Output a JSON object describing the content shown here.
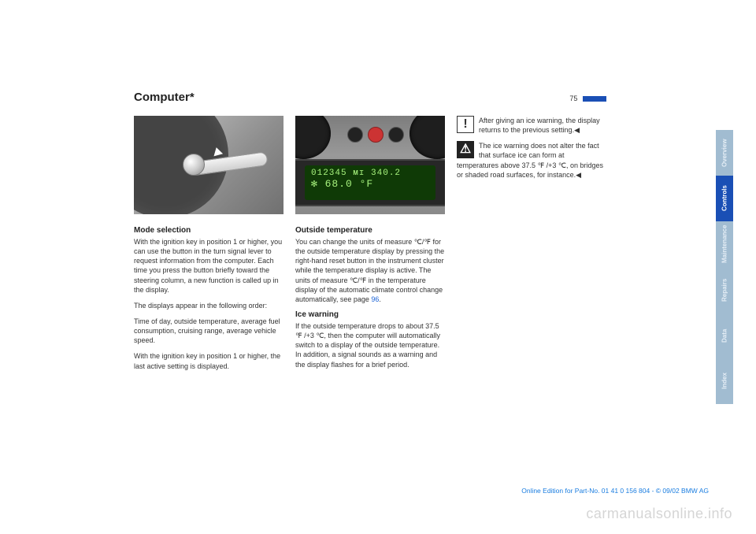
{
  "title": "Computer*",
  "page_number": "75",
  "col1": {
    "h1": "Mode selection",
    "p1": "With the ignition key in position 1 or higher, you can use the button in the turn signal lever to request information from the computer. Each time you press the button briefly toward the steering column, a new function is called up in the display.",
    "p2": "The displays appear in the following order:",
    "p3": "Time of day, outside temperature, average fuel consumption, cruising range, average vehicle speed.",
    "p4": "With the ignition key in position 1 or higher, the last active setting is displayed."
  },
  "col2": {
    "lcd_line1": "012345 ᴍɪ 340.2",
    "lcd_line2": "✻  68.0  °F",
    "h1": "Outside temperature",
    "p1a": "You can change the units of measure ℃/℉ for the outside temperature display by pressing the right-hand reset button in the instrument cluster while the temperature display is active. The units of measure ℃/℉ in the temperature display of the automatic climate control change automatically, see page ",
    "p1link": "96",
    "p1b": ".",
    "h2": "Ice warning",
    "p2": "If the outside temperature drops to about 37.5 ℉ /+3 ℃, then the computer will automatically switch to a display of the outside temperature. In addition, a signal sounds as a warning and the display flashes for a brief period."
  },
  "col3": {
    "icon1": "!",
    "n1": "After giving an ice warning, the display returns to the previous setting.◀",
    "icon2": "⚠",
    "n2": "The ice warning does not alter the fact that surface ice can form at temperatures above 37.5 ℉ /+3 ℃, on bridges or shaded road surfaces, for instance.◀"
  },
  "tabs": {
    "t1": "Overview",
    "t2": "Controls",
    "t3": "Maintenance",
    "t4": "Repairs",
    "t5": "Data",
    "t6": "Index"
  },
  "footer": "Online Edition for Part-No. 01 41 0 156 804 - © 09/02 BMW AG",
  "watermark": "carmanualsonline.info"
}
